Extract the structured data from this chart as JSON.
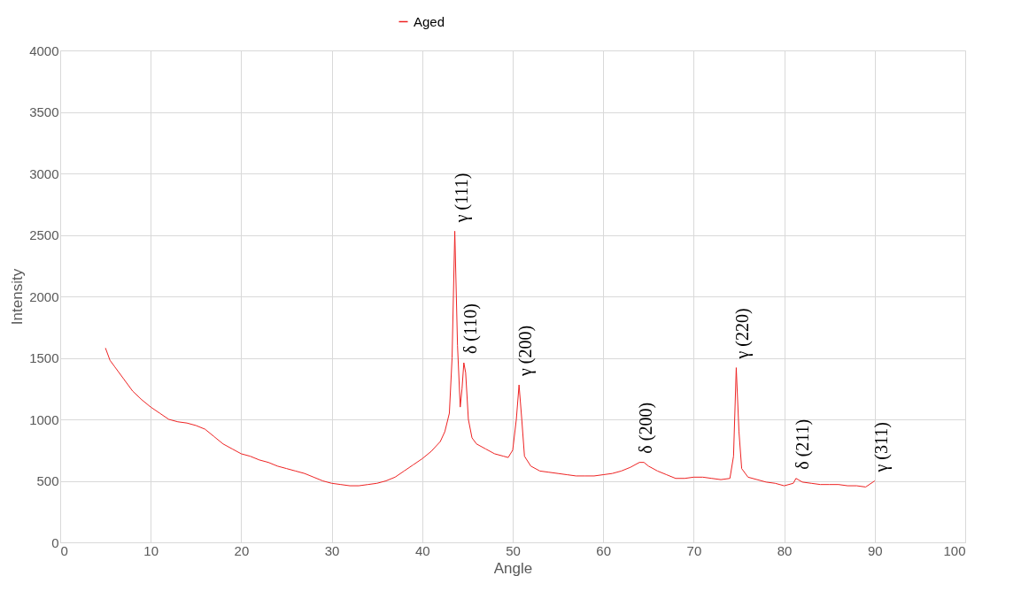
{
  "chart_data": {
    "type": "line",
    "xlabel": "Angle",
    "ylabel": "Intensity",
    "legend": "top",
    "x": [
      5,
      5.5,
      6,
      7,
      8,
      9,
      10,
      11,
      12,
      13,
      14,
      15,
      16,
      17,
      18,
      19,
      20,
      21,
      22,
      23,
      24,
      25,
      26,
      27,
      28,
      29,
      30,
      31,
      32,
      33,
      34,
      35,
      36,
      37,
      38,
      39,
      40,
      41,
      42,
      42.5,
      43,
      43.3,
      43.6,
      43.9,
      44.2,
      44.4,
      44.6,
      44.8,
      45.1,
      45.5,
      46,
      47,
      48,
      49,
      49.5,
      50,
      50.4,
      50.7,
      51,
      51.3,
      52,
      53,
      54,
      55,
      56,
      57,
      58,
      59,
      60,
      61,
      62,
      63,
      64,
      64.5,
      65,
      66,
      67,
      68,
      69,
      70,
      71,
      72,
      73,
      74,
      74.4,
      74.7,
      75,
      75.3,
      76,
      77,
      78,
      79,
      80,
      81,
      81.3,
      82,
      83,
      84,
      85,
      86,
      87,
      88,
      89,
      90
    ],
    "series": [
      {
        "name": "Aged",
        "color": "#ee2222",
        "values": [
          1580,
          1480,
          1430,
          1330,
          1230,
          1160,
          1100,
          1050,
          1000,
          980,
          970,
          950,
          920,
          860,
          800,
          760,
          720,
          700,
          670,
          650,
          620,
          600,
          580,
          560,
          530,
          500,
          480,
          470,
          460,
          460,
          470,
          480,
          500,
          530,
          580,
          630,
          680,
          740,
          820,
          900,
          1050,
          1500,
          2530,
          1600,
          1100,
          1250,
          1460,
          1380,
          1000,
          850,
          800,
          760,
          720,
          700,
          690,
          750,
          1000,
          1280,
          1000,
          700,
          620,
          580,
          570,
          560,
          550,
          540,
          540,
          540,
          550,
          560,
          580,
          610,
          650,
          650,
          620,
          580,
          550,
          520,
          520,
          530,
          530,
          520,
          510,
          520,
          700,
          1420,
          900,
          600,
          530,
          510,
          490,
          480,
          460,
          480,
          520,
          490,
          480,
          470,
          470,
          470,
          460,
          460,
          450,
          500
        ]
      }
    ],
    "xlim": [
      0,
      100
    ],
    "xticks": [
      0,
      10,
      20,
      30,
      40,
      50,
      60,
      70,
      80,
      90,
      100
    ],
    "ylim": [
      0,
      4000
    ],
    "yticks": [
      0,
      500,
      1000,
      1500,
      2000,
      2500,
      3000,
      3500,
      4000
    ],
    "grid": true,
    "annotations": [
      {
        "text": "γ (111)",
        "x": 43.6,
        "y": 2530
      },
      {
        "text": "δ (110)",
        "x": 44.6,
        "y": 1460
      },
      {
        "text": "γ (200)",
        "x": 50.7,
        "y": 1280
      },
      {
        "text": "δ (200)",
        "x": 64,
        "y": 650
      },
      {
        "text": "γ (220)",
        "x": 74.7,
        "y": 1420
      },
      {
        "text": "δ (211)",
        "x": 81.3,
        "y": 520
      },
      {
        "text": "γ (311)",
        "x": 90,
        "y": 500
      }
    ]
  }
}
